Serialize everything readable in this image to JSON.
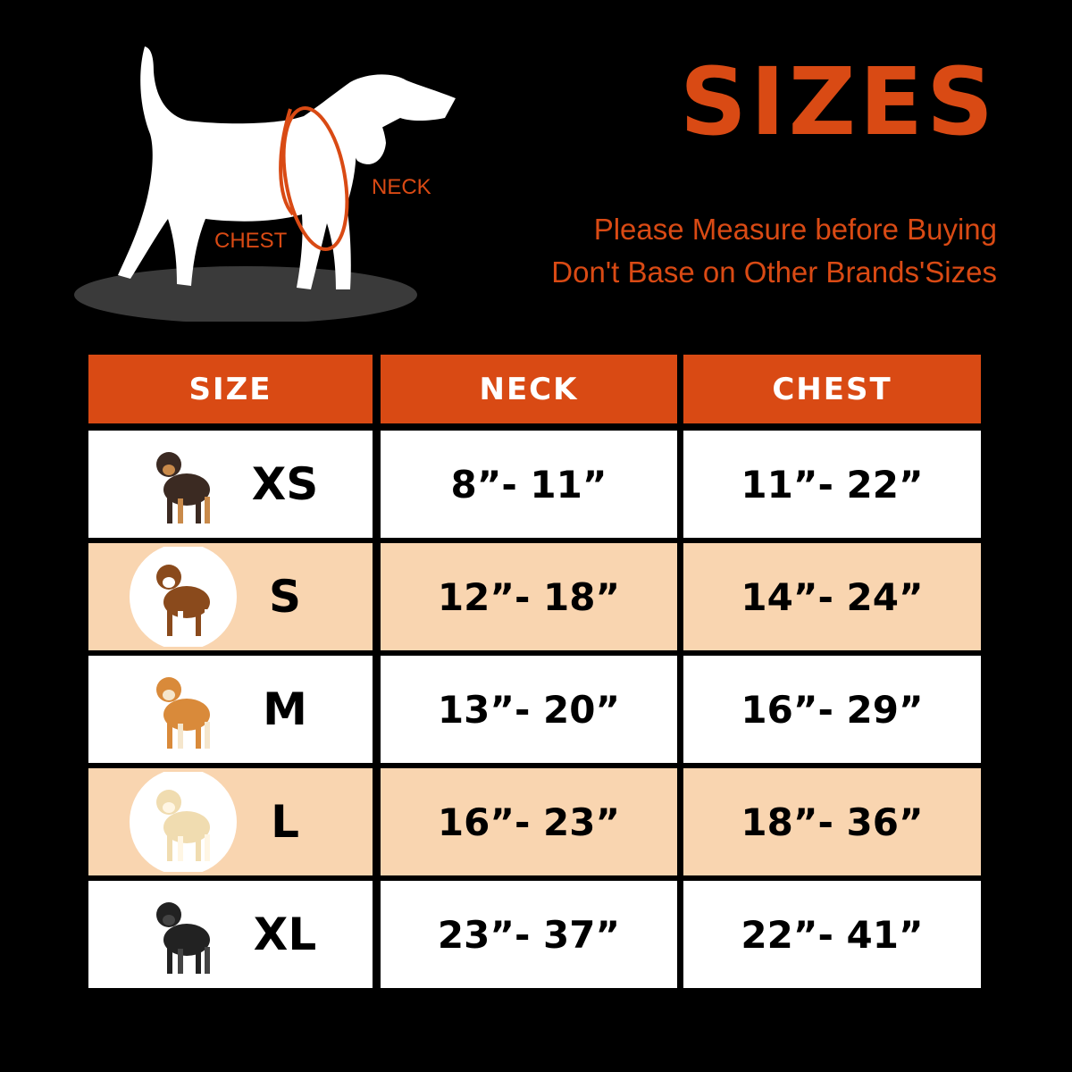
{
  "title": "SIZES",
  "subtitle_line1": "Please Measure before Buying",
  "subtitle_line2": "Don't Base on Other Brands'Sizes",
  "diagram": {
    "neck_label": "NECK",
    "chest_label": "CHEST"
  },
  "colors": {
    "accent": "#d94a14",
    "row_alt": "#f9d5b0",
    "background": "#000000"
  },
  "table": {
    "headers": [
      "SIZE",
      "NECK",
      "CHEST"
    ],
    "rows": [
      {
        "size": "XS",
        "neck": "8”- 11”",
        "chest": "11”- 22”",
        "dog": "chihuahua"
      },
      {
        "size": "S",
        "neck": "12”- 18”",
        "chest": "14”- 24”",
        "dog": "beagle"
      },
      {
        "size": "M",
        "neck": "13”- 20”",
        "chest": "16”- 29”",
        "dog": "shiba-inu"
      },
      {
        "size": "L",
        "neck": "16”- 23”",
        "chest": "18”- 36”",
        "dog": "labrador"
      },
      {
        "size": "XL",
        "neck": "23”- 37”",
        "chest": "22”- 41”",
        "dog": "black-labrador"
      }
    ]
  }
}
